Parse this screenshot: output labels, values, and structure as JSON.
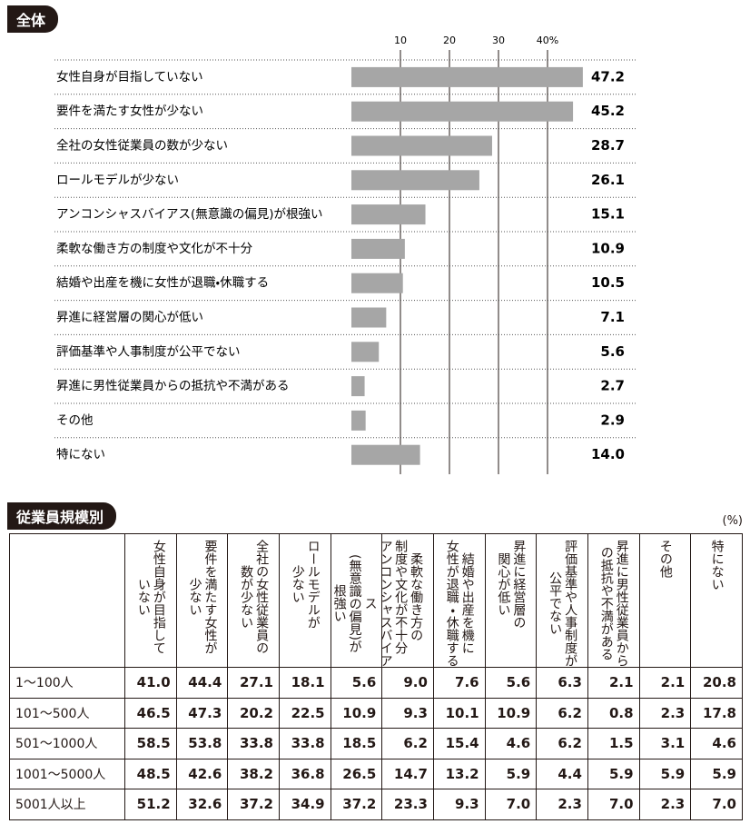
{
  "chart_data": {
    "type": "hbar",
    "title": "全体",
    "categories": [
      "女性自身が目指していない",
      "要件を満たす女性が少ない",
      "全社の女性従業員の数が少ない",
      "ロールモデルが少ない",
      "アンコンシャスバイアス(無意識の偏見)が根強い",
      "柔軟な働き方の制度や文化が不十分",
      "結婚や出産を機に女性が退職・休職する",
      "昇進に経営層の関心が低い",
      "評価基準や人事制度が公平でない",
      "昇進に男性従業員からの抵抗や不満がある",
      "その他",
      "特にない"
    ],
    "values": [
      47.2,
      45.2,
      28.7,
      26.1,
      15.1,
      10.9,
      10.5,
      7.1,
      5.6,
      2.7,
      2.9,
      14.0
    ],
    "value_labels": [
      "47.2",
      "45.2",
      "28.7",
      "26.1",
      "15.1",
      "10.9",
      "10.5",
      "7.1",
      "5.6",
      "2.7",
      "2.9",
      "14.0"
    ],
    "color": "#a6a6a6",
    "xlim": [
      0,
      50
    ],
    "xticks": [
      10,
      20,
      30,
      {
        "value": 40,
        "label": "40%"
      }
    ],
    "grid": true
  },
  "table": {
    "title": "従業員規模別",
    "unit": "(%)",
    "columns": [
      "女性自身が目指して\nいない",
      "要件を満たす女性が\n少ない",
      "全社の女性従業員の\n数が少ない",
      "ロールモデルが\n少ない",
      "アンコンシャスバイアス\n(無意識の偏見)が\n根強い",
      "柔軟な働き方の\n制度や文化が不十分",
      "結婚や出産を機に\n女性が退職・休職する",
      "昇進に経営層の\n関心が低い",
      "評価基準や人事制度が\n公平でない",
      "昇進に男性従業員から\nの抵抗や不満がある",
      "その他",
      "特にない"
    ],
    "rows": [
      {
        "label": "1～100人",
        "values": [
          "41.0",
          "44.4",
          "27.1",
          "18.1",
          "5.6",
          "9.0",
          "7.6",
          "5.6",
          "6.3",
          "2.1",
          "2.1",
          "20.8"
        ]
      },
      {
        "label": "101～500人",
        "values": [
          "46.5",
          "47.3",
          "20.2",
          "22.5",
          "10.9",
          "9.3",
          "10.1",
          "10.9",
          "6.2",
          "0.8",
          "2.3",
          "17.8"
        ]
      },
      {
        "label": "501～1000人",
        "values": [
          "58.5",
          "53.8",
          "33.8",
          "33.8",
          "18.5",
          "6.2",
          "15.4",
          "4.6",
          "6.2",
          "1.5",
          "3.1",
          "4.6"
        ]
      },
      {
        "label": "1001～5000人",
        "values": [
          "48.5",
          "42.6",
          "38.2",
          "36.8",
          "26.5",
          "14.7",
          "13.2",
          "5.9",
          "4.4",
          "5.9",
          "5.9",
          "5.9"
        ]
      },
      {
        "label": "5001人以上",
        "values": [
          "51.2",
          "32.6",
          "37.2",
          "34.9",
          "37.2",
          "23.3",
          "9.3",
          "7.0",
          "2.3",
          "7.0",
          "2.3",
          "7.0"
        ]
      }
    ]
  }
}
